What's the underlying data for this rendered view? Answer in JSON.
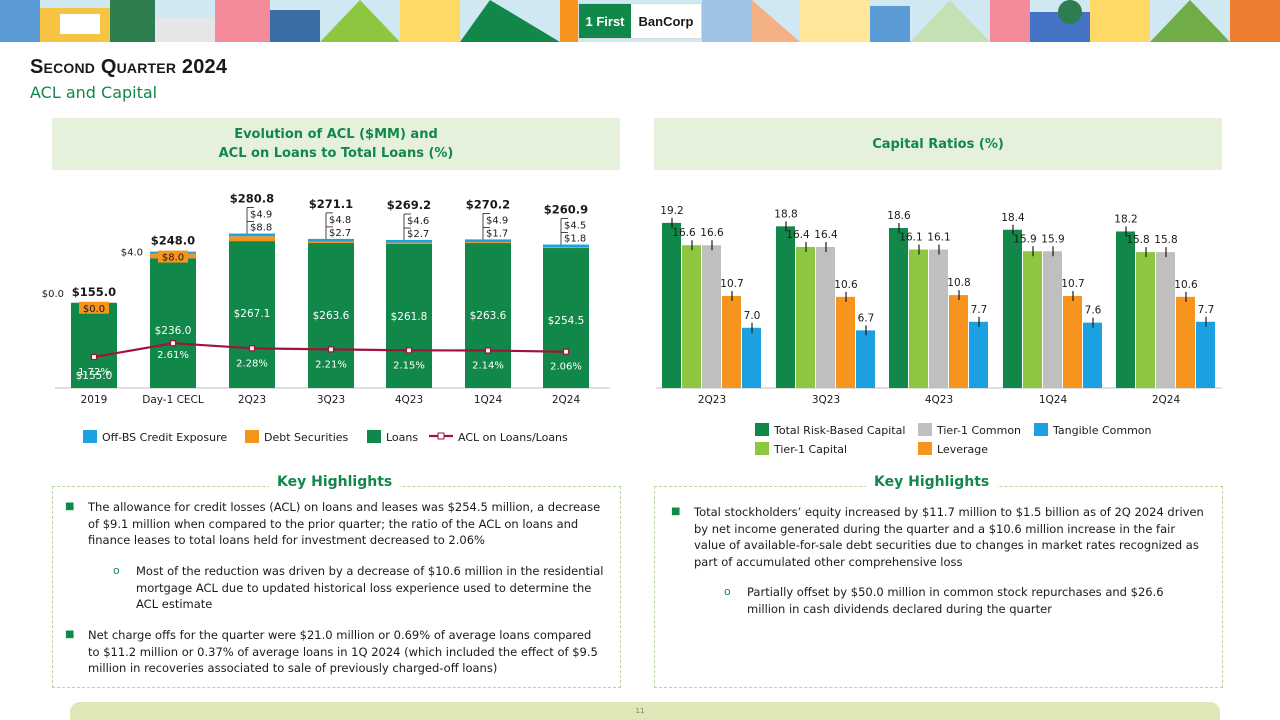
{
  "logo": {
    "mark": "1 First",
    "word": "BanCorp"
  },
  "slide": {
    "title": "Second Quarter 2024",
    "subtitle": "ACL and Capital",
    "page_number": "11"
  },
  "colors": {
    "brand_green": "#11874a",
    "light_green": "#8dc63f",
    "orange": "#f7941d",
    "blue": "#1ba1e2",
    "gray": "#bfbfbf",
    "line_red": "#a0133a",
    "panel_bg": "#e6f1dc"
  },
  "left_panel": {
    "title_line1": "Evolution of ACL ($MM) and",
    "title_line2": "ACL on Loans to Total Loans (%)"
  },
  "right_panel": {
    "title": "Capital Ratios (%)"
  },
  "chart_data": [
    {
      "type": "bar",
      "stacked": true,
      "categories": [
        "2019",
        "Day-1 CECL",
        "2Q23",
        "3Q23",
        "4Q23",
        "1Q24",
        "2Q24"
      ],
      "series": [
        {
          "name": "Loans",
          "values": [
            155.0,
            236.0,
            267.1,
            263.6,
            261.8,
            263.6,
            254.5
          ],
          "labels": [
            "$155.0",
            "$236.0",
            "$267.1",
            "$263.6",
            "$261.8",
            "$263.6",
            "$254.5"
          ]
        },
        {
          "name": "Debt Securities",
          "values": [
            0.0,
            8.0,
            8.8,
            2.7,
            2.7,
            1.7,
            1.8
          ],
          "labels": [
            "$0.0",
            "$8.0",
            "$8.8",
            "$2.7",
            "$2.7",
            "$1.7",
            "$1.8"
          ]
        },
        {
          "name": "Off-BS Credit Exposure",
          "values": [
            0.0,
            4.0,
            4.9,
            4.8,
            4.6,
            4.9,
            4.5
          ],
          "labels": [
            "$0.0",
            "$4.0",
            "$4.9",
            "$4.8",
            "$4.6",
            "$4.9",
            "$4.5"
          ]
        }
      ],
      "totals": [
        "$155.0",
        "$248.0",
        "$280.8",
        "$271.1",
        "$269.2",
        "$270.2",
        "$260.9"
      ],
      "line_series": {
        "name": "ACL on Loans/Loans",
        "values": [
          1.72,
          2.61,
          2.28,
          2.21,
          2.15,
          2.14,
          2.06
        ],
        "labels": [
          "1.72%",
          "2.61%",
          "2.28%",
          "2.21%",
          "2.15%",
          "2.14%",
          "2.06%"
        ]
      },
      "legend": [
        "Off-BS Credit Exposure",
        "Debt Securities",
        "Loans",
        "ACL on Loans/Loans"
      ],
      "legend_position": "bottom",
      "grid": false
    },
    {
      "type": "bar",
      "categories": [
        "2Q23",
        "3Q23",
        "4Q23",
        "1Q24",
        "2Q24"
      ],
      "series": [
        {
          "name": "Total Risk-Based Capital",
          "values": [
            19.2,
            18.8,
            18.6,
            18.4,
            18.2
          ]
        },
        {
          "name": "Tier-1 Capital",
          "values": [
            16.6,
            16.4,
            16.1,
            15.9,
            15.8
          ]
        },
        {
          "name": "Tier-1 Common",
          "values": [
            16.6,
            16.4,
            16.1,
            15.9,
            15.8
          ]
        },
        {
          "name": "Leverage",
          "values": [
            10.7,
            10.6,
            10.8,
            10.7,
            10.6
          ]
        },
        {
          "name": "Tangible Common",
          "values": [
            7.0,
            6.7,
            7.7,
            7.6,
            7.7
          ]
        }
      ],
      "legend": [
        "Total Risk-Based Capital",
        "Tier-1 Common",
        "Tangible Common",
        "Tier-1 Capital",
        "Leverage"
      ],
      "legend_position": "bottom",
      "grid": false
    }
  ],
  "highlights_left": {
    "title": "Key Highlights",
    "bullets": [
      "The allowance  for credit losses (ACL) on loans and leases was $254.5 million, a decrease of $9.1 million when compared to the prior quarter; the ratio of the ACL on loans and finance leases to total loans held for investment decreased to 2.06%",
      "Most of the reduction  was driven by a decrease of $10.6 million in the residential mortgage ACL due to updated historical loss experience used to determine the ACL estimate",
      "Net charge offs for the quarter were $21.0 million or 0.69% of average loans compared to $11.2 million or 0.37% of average loans in 1Q 2024 (which included the effect of $9.5 million in recoveries associated to sale of previously charged-off loans)"
    ]
  },
  "highlights_right": {
    "title": "Key Highlights",
    "bullets": [
      "Total stockholders’ equity increased by $11.7 million to $1.5 billion as of 2Q 2024 driven by net income generated during the quarter and a $10.6 million increase in the fair value of available-for-sale debt securities due to changes in market rates recognized as part of accumulated  other comprehensive loss",
      "Partially offset by $50.0 million in common stock repurchases and $26.6 million in cash dividends declared  during the quarter"
    ]
  }
}
